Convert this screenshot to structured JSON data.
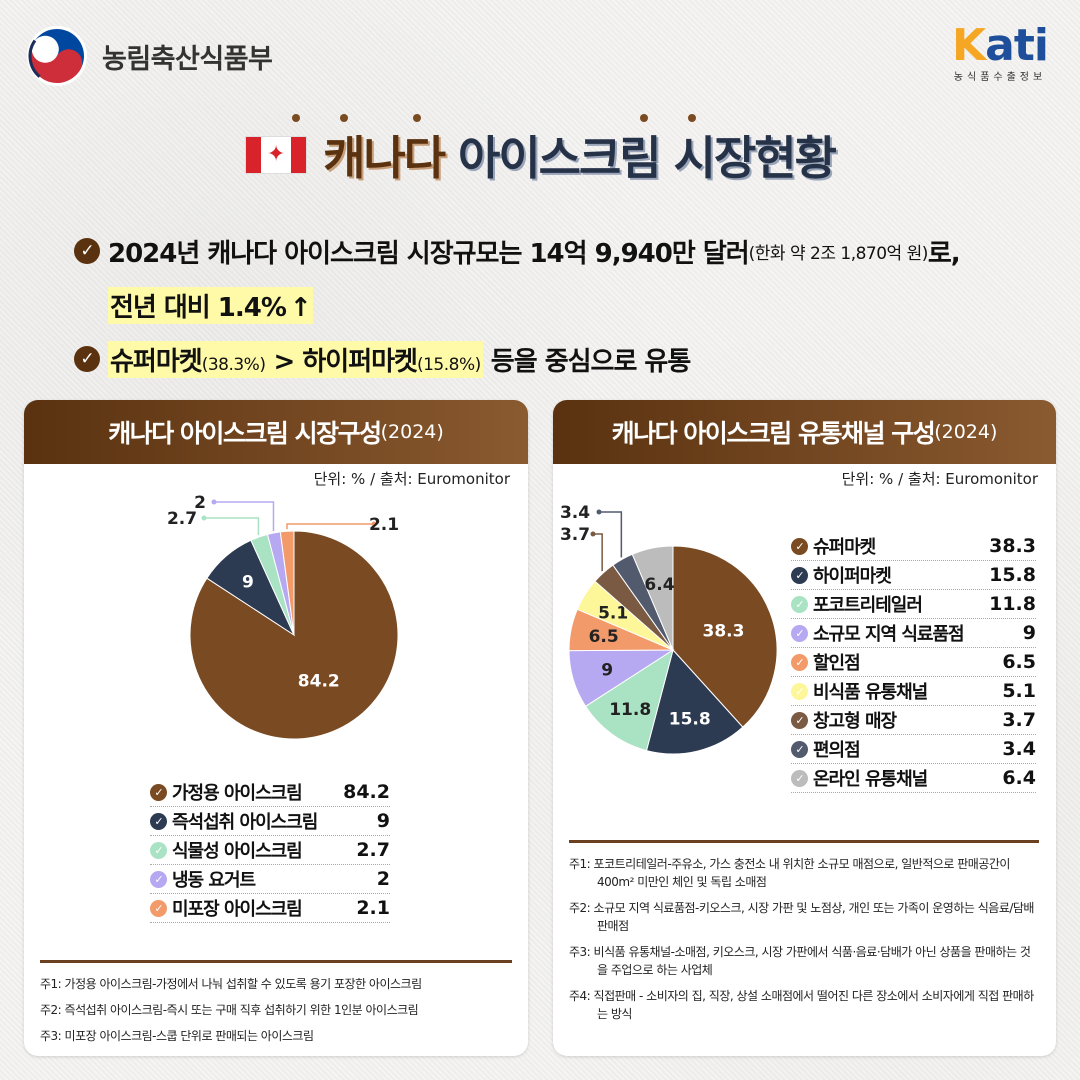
{
  "header": {
    "ministry_name": "농림축산식품부",
    "logo_k": "K",
    "logo_ati": "ati",
    "logo_sub": "농식품수출정보"
  },
  "title": {
    "part_a": "캐나다",
    "part_b": "아이스크림 시장현황"
  },
  "summary": {
    "line1_main": "2024년 캐나다 아이스크림 시장규모는 14억 9,940만 달러",
    "line1_small": "(한화 약 2조 1,870억 원)",
    "line1_end": "로,",
    "line2_main": "전년 대비 1.4%",
    "line2_arrow": "↑",
    "line3_a": "슈퍼마켓",
    "line3_a_small": "(38.3%)",
    "line3_gt": " > ",
    "line3_b": "하이퍼마켓",
    "line3_b_small": "(15.8%)",
    "line3_end": " 등을 중심으로 유통"
  },
  "left_panel": {
    "heading": "캐나다 아이스크림 시장구성",
    "heading_year": "(2024)",
    "unit": "단위: % / 출처: Euromonitor",
    "notes": [
      "주1: 가정용 아이스크림-가정에서 나눠 섭취할 수 있도록 용기 포장한 아이스크림",
      "주2: 즉석섭취 아이스크림-즉시 또는 구매 직후 섭취하기 위한 1인분 아이스크림",
      "주3: 미포장 아이스크림-스쿱 단위로 판매되는 아이스크림"
    ]
  },
  "right_panel": {
    "heading": "캐나다 아이스크림 유통채널 구성",
    "heading_year": "(2024)",
    "unit": "단위: % / 출처: Euromonitor",
    "notes": [
      "주1: 포코트리테일러-주유소, 가스 충전소 내 위치한 소규모 매점으로, 일반적으로 판매공간이 400m² 미만인 체인 및 독립 소매점",
      "주2: 소규모 지역 식료품점-키오스크, 시장 가판 및 노점상, 개인 또는 가족이 운영하는 식음료/담배 판매점",
      "주3: 비식품 유통채널-소매점, 키오스크, 시장 가판에서 식품·음료·담배가 아닌 상품을 판매하는 것을 주업으로 하는 사업체",
      "주4: 직접판매 - 소비자의 집, 직장, 상설 소매점에서 떨어진 다른 장소에서 소비자에게 직접 판매하는 방식"
    ]
  },
  "chart_data": [
    {
      "type": "pie",
      "title": "캐나다 아이스크림 시장구성",
      "categories": [
        "가정용 아이스크림",
        "즉석섭취 아이스크림",
        "식물성 아이스크림",
        "냉동 요거트",
        "미포장 아이스크림"
      ],
      "values": [
        84.2,
        9,
        2.7,
        2,
        2.1
      ],
      "labels": [
        "84.2",
        "9",
        "2.7",
        "2",
        "2.1"
      ],
      "colors": [
        "#7a4a22",
        "#2c3a52",
        "#a9e3c4",
        "#b7a8f2",
        "#f39a6a"
      ],
      "legend": "bottom"
    },
    {
      "type": "pie",
      "title": "캐나다 아이스크림 유통채널 구성",
      "categories": [
        "슈퍼마켓",
        "하이퍼마켓",
        "포코트리테일러",
        "소규모 지역 식료품점",
        "할인점",
        "비식품 유통채널",
        "창고형 매장",
        "편의점",
        "온라인 유통채널"
      ],
      "values": [
        38.3,
        15.8,
        11.8,
        9,
        6.5,
        5.1,
        3.7,
        3.4,
        6.4
      ],
      "labels": [
        "38.3",
        "15.8",
        "11.8",
        "9",
        "6.5",
        "5.1",
        "3.7",
        "3.4",
        "6.4"
      ],
      "colors": [
        "#7a4a22",
        "#2c3a52",
        "#a9e3c4",
        "#b7a8f2",
        "#f39a6a",
        "#fdf79a",
        "#7a5a42",
        "#525a6e",
        "#bcbcbc"
      ],
      "legend": "right"
    }
  ]
}
